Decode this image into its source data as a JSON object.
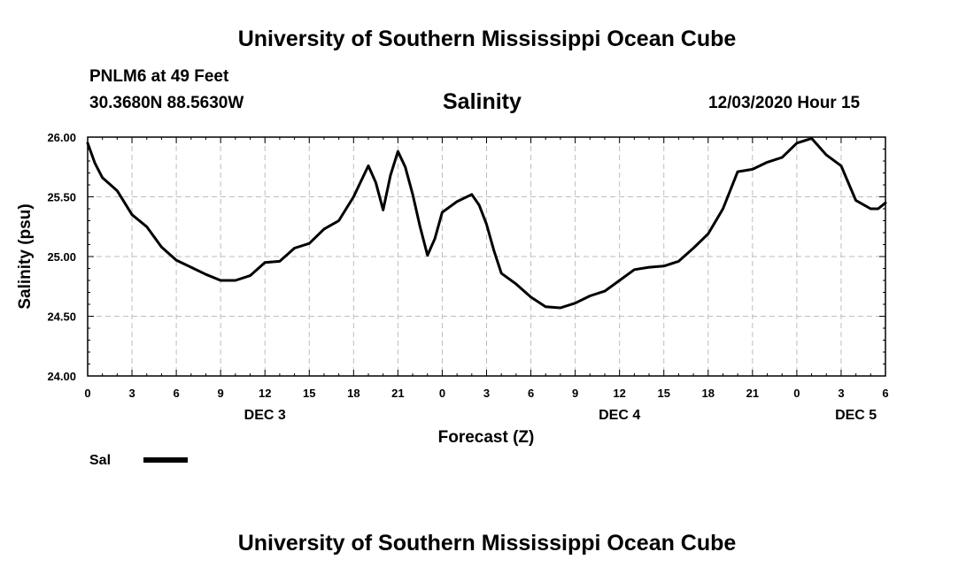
{
  "header": {
    "title": "University of Southern Mississippi Ocean Cube",
    "station": "PNLM6 at 49 Feet",
    "coordinates": "30.3680N 88.5630W",
    "datetime": "12/03/2020 Hour 15"
  },
  "footer": {
    "title": "University of Southern Mississippi Ocean Cube"
  },
  "chart_data": {
    "type": "line",
    "title": "Salinity",
    "xlabel": "Forecast (Z)",
    "ylabel": "Salinity (psu)",
    "xlim": [
      0,
      54
    ],
    "ylim": [
      24.0,
      26.0
    ],
    "y_ticks": [
      "24.00",
      "24.50",
      "25.00",
      "25.50",
      "26.00"
    ],
    "y_tick_values": [
      24.0,
      24.5,
      25.0,
      25.5,
      26.0
    ],
    "x_ticks": [
      "0",
      "3",
      "6",
      "9",
      "12",
      "15",
      "18",
      "21",
      "0",
      "3",
      "6",
      "9",
      "12",
      "15",
      "18",
      "21",
      "0",
      "3",
      "6"
    ],
    "day_labels": [
      {
        "label": "DEC 3",
        "at_hour": 12
      },
      {
        "label": "DEC 4",
        "at_hour": 36
      },
      {
        "label": "DEC 5",
        "at_hour": 52
      }
    ],
    "grid": true,
    "legend_position": "bottom-left",
    "series": [
      {
        "name": "Sal",
        "color": "#000000",
        "x": [
          0,
          0.5,
          1,
          2,
          3,
          4,
          5,
          6,
          7,
          8,
          9,
          10,
          11,
          12,
          13,
          14,
          15,
          16,
          17,
          18,
          19,
          19.5,
          20,
          20.5,
          21,
          21.5,
          22,
          22.5,
          23,
          23.5,
          24,
          25,
          26,
          26.5,
          27,
          27.5,
          28,
          29,
          30,
          31,
          32,
          33,
          34,
          35,
          36,
          37,
          38,
          39,
          40,
          41,
          42,
          43,
          44,
          45,
          46,
          46.5,
          47,
          48,
          49,
          50,
          51,
          52,
          53,
          53.5,
          54
        ],
        "values": [
          25.95,
          25.78,
          25.66,
          25.55,
          25.35,
          25.25,
          25.08,
          24.97,
          24.91,
          24.85,
          24.8,
          24.8,
          24.84,
          24.95,
          24.96,
          25.07,
          25.11,
          25.23,
          25.3,
          25.5,
          25.76,
          25.62,
          25.39,
          25.68,
          25.88,
          25.75,
          25.52,
          25.25,
          25.01,
          25.15,
          25.37,
          25.46,
          25.52,
          25.43,
          25.27,
          25.05,
          24.86,
          24.77,
          24.66,
          24.58,
          24.57,
          24.61,
          24.67,
          24.71,
          24.8,
          24.89,
          24.91,
          24.92,
          24.96,
          25.07,
          25.19,
          25.4,
          25.71,
          25.73,
          25.79,
          25.81,
          25.83,
          25.95,
          25.99,
          25.85,
          25.76,
          25.47,
          25.4,
          25.4,
          25.45
        ]
      }
    ]
  }
}
